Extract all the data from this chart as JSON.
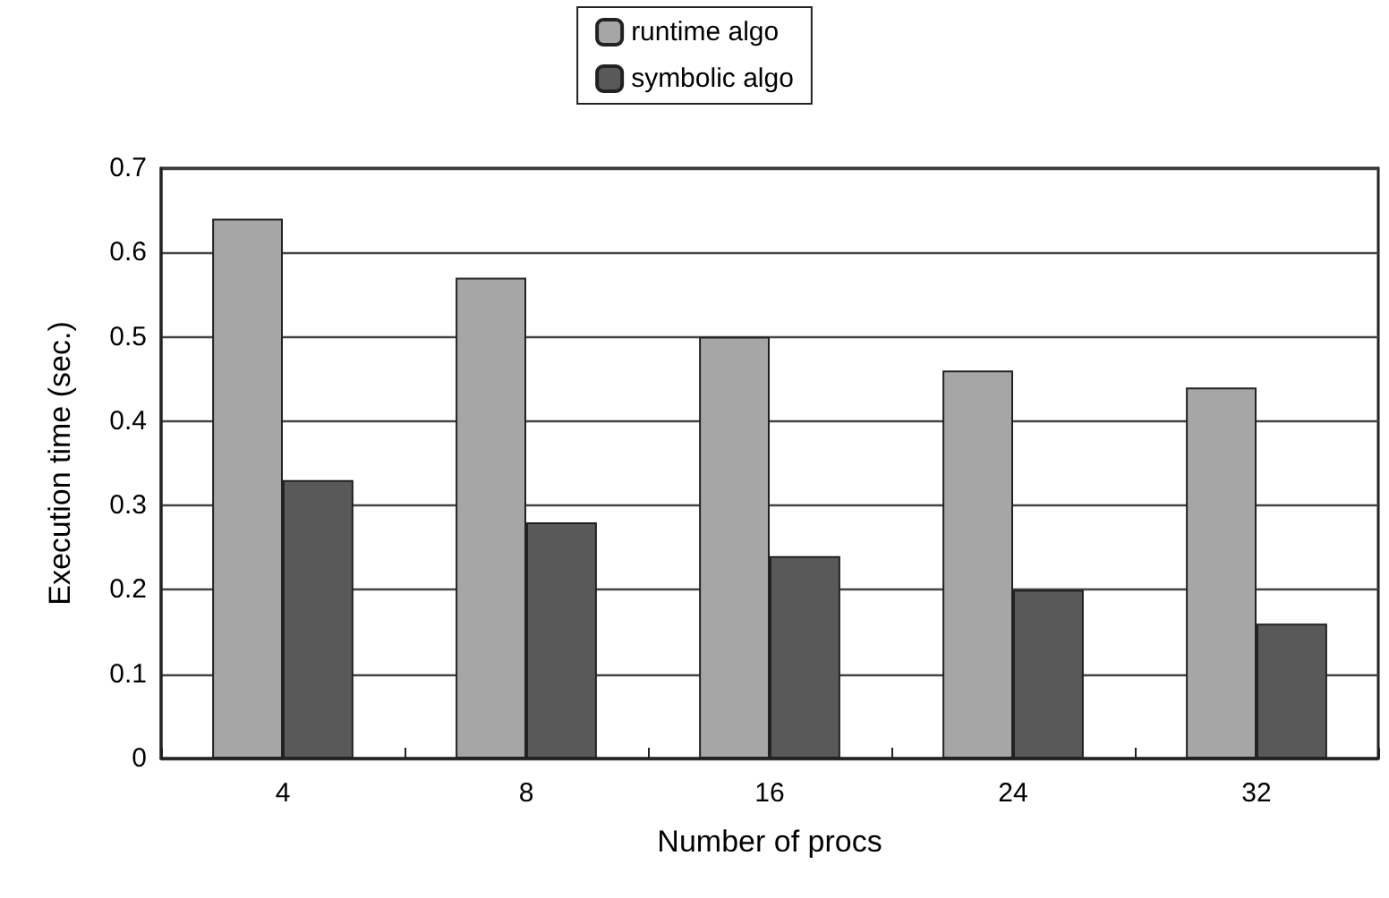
{
  "chart_data": {
    "type": "bar",
    "xlabel": "Number of procs",
    "ylabel": "Execution time (sec.)",
    "categories": [
      "4",
      "8",
      "16",
      "24",
      "32"
    ],
    "series": [
      {
        "name": "runtime algo",
        "color": "#a6a6a6",
        "values": [
          0.64,
          0.57,
          0.5,
          0.46,
          0.44
        ]
      },
      {
        "name": "symbolic algo",
        "color": "#595959",
        "values": [
          0.33,
          0.28,
          0.24,
          0.2,
          0.16
        ]
      }
    ],
    "ylim": [
      0,
      0.7
    ],
    "yticks": [
      0,
      0.1,
      0.2,
      0.3,
      0.4,
      0.5,
      0.6,
      0.7
    ],
    "grid": "y",
    "legend": "top"
  }
}
